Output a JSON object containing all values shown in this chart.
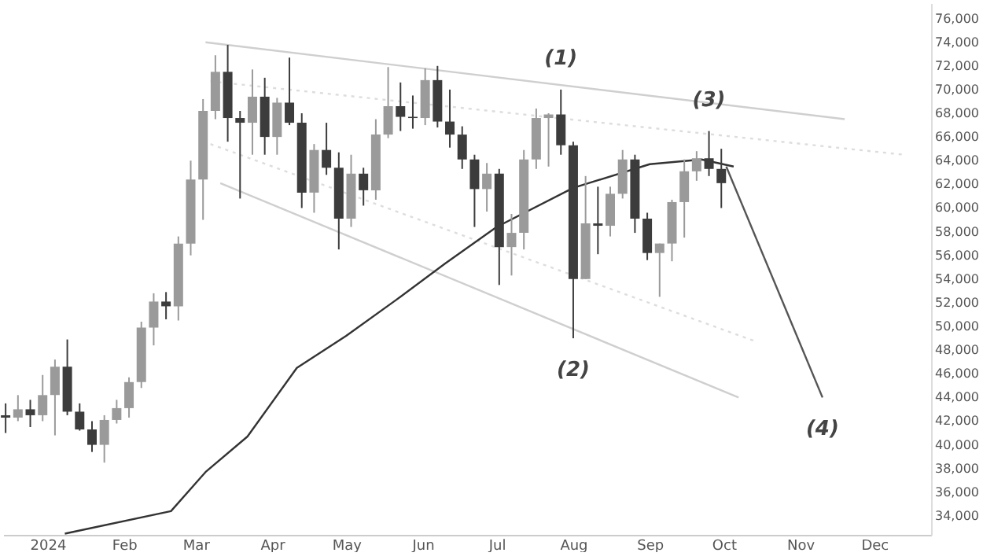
{
  "chart_data": {
    "type": "candlestick",
    "x": [
      "2023-12-15",
      "2023-12-20",
      "2023-12-25",
      "2023-12-30",
      "2024-01-04",
      "2024-01-09",
      "2024-01-14",
      "2024-01-19",
      "2024-01-24",
      "2024-01-29",
      "2024-02-03",
      "2024-02-08",
      "2024-02-13",
      "2024-02-18",
      "2024-02-23",
      "2024-02-28",
      "2024-03-04",
      "2024-03-09",
      "2024-03-14",
      "2024-03-19",
      "2024-03-24",
      "2024-03-29",
      "2024-04-03",
      "2024-04-08",
      "2024-04-13",
      "2024-04-18",
      "2024-04-23",
      "2024-04-28",
      "2024-05-03",
      "2024-05-08",
      "2024-05-13",
      "2024-05-18",
      "2024-05-23",
      "2024-05-28",
      "2024-06-02",
      "2024-06-07",
      "2024-06-12",
      "2024-06-17",
      "2024-06-22",
      "2024-06-27",
      "2024-07-02",
      "2024-07-07",
      "2024-07-12",
      "2024-07-17",
      "2024-07-22",
      "2024-07-27",
      "2024-08-01",
      "2024-08-06",
      "2024-08-11",
      "2024-08-16",
      "2024-08-21",
      "2024-08-26",
      "2024-08-31",
      "2024-09-05",
      "2024-09-10",
      "2024-09-15",
      "2024-09-20",
      "2024-09-25",
      "2024-09-30"
    ],
    "ohlc": [
      [
        42500,
        43500,
        41000,
        42300
      ],
      [
        42300,
        44200,
        42000,
        43000
      ],
      [
        43000,
        43800,
        41500,
        42500
      ],
      [
        42500,
        45900,
        42000,
        44200
      ],
      [
        44200,
        47200,
        40800,
        46600
      ],
      [
        46600,
        48900,
        42500,
        42800
      ],
      [
        42800,
        43500,
        41200,
        41300
      ],
      [
        41300,
        42000,
        39400,
        40000
      ],
      [
        40000,
        42500,
        38500,
        42100
      ],
      [
        42100,
        43800,
        41800,
        43100
      ],
      [
        43100,
        45700,
        42300,
        45300
      ],
      [
        45300,
        50400,
        44800,
        49900
      ],
      [
        49900,
        52800,
        48400,
        52100
      ],
      [
        52100,
        52900,
        50600,
        51700
      ],
      [
        51700,
        57600,
        50500,
        57000
      ],
      [
        57000,
        64000,
        56000,
        62400
      ],
      [
        62400,
        69200,
        59000,
        68200
      ],
      [
        68200,
        72900,
        67500,
        71500
      ],
      [
        71500,
        73777,
        65600,
        67600
      ],
      [
        67600,
        68200,
        60800,
        67200
      ],
      [
        67200,
        71700,
        64500,
        69400
      ],
      [
        69400,
        71000,
        64500,
        66000
      ],
      [
        66000,
        69300,
        64500,
        68900
      ],
      [
        68900,
        72700,
        67000,
        67200
      ],
      [
        67200,
        68000,
        60000,
        61300
      ],
      [
        61300,
        65400,
        59600,
        64900
      ],
      [
        64900,
        67200,
        62800,
        63400
      ],
      [
        63400,
        64700,
        56500,
        59100
      ],
      [
        59100,
        64500,
        58400,
        62900
      ],
      [
        62900,
        63400,
        60200,
        61500
      ],
      [
        61500,
        67500,
        60700,
        66200
      ],
      [
        66200,
        71900,
        65900,
        68600
      ],
      [
        68600,
        70600,
        66500,
        67700
      ],
      [
        67700,
        69500,
        66700,
        67600
      ],
      [
        67600,
        71800,
        67000,
        70800
      ],
      [
        70800,
        72000,
        66800,
        67300
      ],
      [
        67300,
        70000,
        65100,
        66200
      ],
      [
        66200,
        66900,
        63300,
        64100
      ],
      [
        64100,
        64500,
        58400,
        61600
      ],
      [
        61600,
        63800,
        59700,
        62900
      ],
      [
        62900,
        63300,
        53500,
        56700
      ],
      [
        56700,
        59500,
        54300,
        57900
      ],
      [
        57900,
        64900,
        56500,
        64100
      ],
      [
        64100,
        68400,
        63300,
        67600
      ],
      [
        67600,
        68000,
        63500,
        67900
      ],
      [
        67900,
        70000,
        64500,
        65300
      ],
      [
        65300,
        65600,
        49000,
        54000
      ],
      [
        54000,
        62700,
        54000,
        58700
      ],
      [
        58700,
        61800,
        56100,
        58500
      ],
      [
        58500,
        61800,
        57600,
        61200
      ],
      [
        61200,
        64900,
        60800,
        64100
      ],
      [
        64100,
        64500,
        57900,
        59100
      ],
      [
        59100,
        59600,
        55600,
        56200
      ],
      [
        56200,
        57000,
        52500,
        57000
      ],
      [
        57000,
        60700,
        55500,
        60500
      ],
      [
        60500,
        64100,
        57500,
        63100
      ],
      [
        63100,
        64800,
        62300,
        64200
      ],
      [
        64200,
        66500,
        62700,
        63300
      ],
      [
        63300,
        65000,
        60000,
        62100
      ]
    ],
    "series": [
      {
        "type": "line",
        "color": "#cfcfcf",
        "line_style": "solid",
        "x": [
          "2024-03-05",
          "2024-11-19"
        ],
        "values": [
          74000,
          67500
        ]
      },
      {
        "type": "line",
        "color": "#dddddd",
        "line_style": "dotted",
        "x": [
          "2024-03-07",
          "2024-12-13"
        ],
        "values": [
          70700,
          64500
        ]
      },
      {
        "type": "line",
        "color": "#dddddd",
        "line_style": "dotted",
        "x": [
          "2024-03-07",
          "2024-10-13"
        ],
        "values": [
          65400,
          48800
        ]
      },
      {
        "type": "line",
        "color": "#cfcfcf",
        "line_style": "solid",
        "x": [
          "2024-03-11",
          "2024-10-07"
        ],
        "values": [
          62100,
          44000
        ]
      },
      {
        "type": "line",
        "color": "#333333",
        "line_style": "solid",
        "x": [
          "2024-01-08",
          "2024-02-20",
          "2024-03-05",
          "2024-03-22",
          "2024-04-11",
          "2024-05-01",
          "2024-05-21",
          "2024-06-10",
          "2024-07-01",
          "2024-08-01",
          "2024-09-01",
          "2024-09-22",
          "2024-10-05"
        ],
        "values": [
          32500,
          34400,
          37700,
          40700,
          46500,
          49200,
          52200,
          55300,
          58400,
          61700,
          63700,
          64100,
          63500
        ]
      },
      {
        "type": "line",
        "color": "#555555",
        "line_style": "solid",
        "x": [
          "2024-10-02",
          "2024-11-10"
        ],
        "values": [
          63500,
          44000
        ]
      }
    ],
    "annotations": [
      {
        "text": "(1)",
        "x": "2024-07-27",
        "y": 70000
      },
      {
        "text": "(2)",
        "x": "2024-08-01",
        "y": 49000
      },
      {
        "text": "(3)",
        "x": "2024-09-25",
        "y": 66500
      },
      {
        "text": "(4)",
        "x": "2024-11-10",
        "y": 44000
      }
    ],
    "xlim": [
      "2023-12-14",
      "2024-12-24"
    ],
    "xticks": [
      {
        "value": "2024-01-01",
        "label": "2024"
      },
      {
        "value": "2024-02-01",
        "label": "Feb"
      },
      {
        "value": "2024-03-01",
        "label": "Mar"
      },
      {
        "value": "2024-04-01",
        "label": "Apr"
      },
      {
        "value": "2024-05-01",
        "label": "May"
      },
      {
        "value": "2024-06-01",
        "label": "Jun"
      },
      {
        "value": "2024-07-01",
        "label": "Jul"
      },
      {
        "value": "2024-08-01",
        "label": "Aug"
      },
      {
        "value": "2024-09-01",
        "label": "Sep"
      },
      {
        "value": "2024-10-01",
        "label": "Oct"
      },
      {
        "value": "2024-11-01",
        "label": "Nov"
      },
      {
        "value": "2024-12-01",
        "label": "Dec"
      }
    ],
    "ylim": [
      32400,
      77300
    ],
    "yticks": [
      {
        "value": 34000,
        "label": "34,000"
      },
      {
        "value": 36000,
        "label": "36,000"
      },
      {
        "value": 38000,
        "label": "38,000"
      },
      {
        "value": 40000,
        "label": "40,000"
      },
      {
        "value": 42000,
        "label": "42,000"
      },
      {
        "value": 44000,
        "label": "44,000"
      },
      {
        "value": 46000,
        "label": "46,000"
      },
      {
        "value": 48000,
        "label": "48,000"
      },
      {
        "value": 50000,
        "label": "50,000"
      },
      {
        "value": 52000,
        "label": "52,000"
      },
      {
        "value": 54000,
        "label": "54,000"
      },
      {
        "value": 56000,
        "label": "56,000"
      },
      {
        "value": 58000,
        "label": "58,000"
      },
      {
        "value": 60000,
        "label": "60,000"
      },
      {
        "value": 62000,
        "label": "62,000"
      },
      {
        "value": 64000,
        "label": "64,000"
      },
      {
        "value": 66000,
        "label": "66,000"
      },
      {
        "value": 68000,
        "label": "68,000"
      },
      {
        "value": 70000,
        "label": "70,000"
      },
      {
        "value": 72000,
        "label": "72,000"
      },
      {
        "value": 74000,
        "label": "74,000"
      },
      {
        "value": 76000,
        "label": "76,000"
      }
    ],
    "grid": false,
    "legend": false
  }
}
